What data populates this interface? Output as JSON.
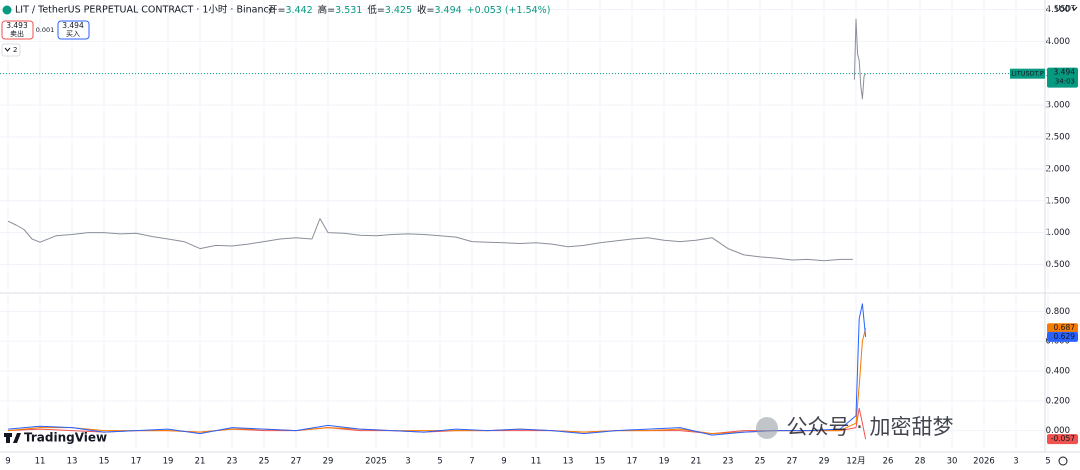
{
  "header": {
    "symbol": "LIT / TetherUS PERPETUAL CONTRACT · 1小时 · Binance",
    "open_label": "开=",
    "open": "3.442",
    "high_label": "高=",
    "high": "3.531",
    "low_label": "低=",
    "low": "3.425",
    "close_label": "收=",
    "close": "3.494",
    "change": "+0.053 (+1.54%)",
    "sell_price": "3.493",
    "sell_label": "卖出",
    "spread": "0.001",
    "buy_price": "3.494",
    "buy_label": "买入",
    "indicator_toggle": "2",
    "currency": "USDT"
  },
  "watermark": "公众号 · 加密甜梦",
  "logo": "TradingView",
  "chart_data": [
    {
      "type": "line",
      "color": "#8a8f99",
      "x": [
        0,
        0.5,
        1,
        1.5,
        2,
        3,
        4,
        5,
        6,
        7,
        8,
        9,
        10,
        11,
        12,
        13,
        14,
        15,
        16,
        17,
        18,
        19,
        19.5,
        20,
        21,
        22,
        23,
        24,
        25,
        26,
        27,
        28,
        29,
        30,
        31,
        32,
        33,
        34,
        35,
        36,
        37,
        38,
        39,
        40,
        41,
        42,
        43,
        44,
        45,
        46,
        47,
        48,
        49,
        50,
        51,
        52,
        52.8,
        52.85,
        52.9,
        53.0,
        53.1,
        53.2,
        53.3,
        53.4,
        53.5,
        53.6
      ],
      "values": [
        1.18,
        1.12,
        1.05,
        0.9,
        0.85,
        0.95,
        0.97,
        1.0,
        1.0,
        0.98,
        0.99,
        0.94,
        0.9,
        0.86,
        0.75,
        0.8,
        0.79,
        0.82,
        0.86,
        0.9,
        0.92,
        0.9,
        1.22,
        1.0,
        0.99,
        0.96,
        0.95,
        0.97,
        0.98,
        0.97,
        0.95,
        0.93,
        0.86,
        0.85,
        0.84,
        0.83,
        0.84,
        0.82,
        0.78,
        0.8,
        0.84,
        0.87,
        0.9,
        0.92,
        0.88,
        0.86,
        0.88,
        0.92,
        0.75,
        0.65,
        0.62,
        0.6,
        0.57,
        0.58,
        0.56,
        0.58,
        0.58,
        null,
        3.4,
        4.35,
        3.8,
        3.7,
        3.3,
        3.1,
        3.45,
        3.494
      ],
      "xlim": [
        -0.5,
        66.5
      ],
      "xticks": [
        {
          "value": 0,
          "label": "9"
        },
        {
          "value": 2,
          "label": "11"
        },
        {
          "value": 4,
          "label": "13"
        },
        {
          "value": 6,
          "label": "15"
        },
        {
          "value": 8,
          "label": "17"
        },
        {
          "value": 10,
          "label": "19"
        },
        {
          "value": 12,
          "label": "21"
        },
        {
          "value": 14,
          "label": "23"
        },
        {
          "value": 16,
          "label": "25"
        },
        {
          "value": 18,
          "label": "27"
        },
        {
          "value": 20,
          "label": "29"
        },
        {
          "value": 23,
          "label": "2025"
        },
        {
          "value": 25,
          "label": "3"
        },
        {
          "value": 27,
          "label": "5"
        },
        {
          "value": 29,
          "label": "7"
        },
        {
          "value": 31,
          "label": "9"
        },
        {
          "value": 33,
          "label": "11"
        },
        {
          "value": 35,
          "label": "13"
        },
        {
          "value": 37,
          "label": "15"
        },
        {
          "value": 39,
          "label": "17"
        },
        {
          "value": 41,
          "label": "19"
        },
        {
          "value": 43,
          "label": "21"
        },
        {
          "value": 45,
          "label": "23"
        },
        {
          "value": 47,
          "label": "25"
        },
        {
          "value": 49,
          "label": "27"
        },
        {
          "value": 51,
          "label": "29"
        },
        {
          "value": 53,
          "label": "12月"
        },
        {
          "value": 55,
          "label": "26"
        },
        {
          "value": 57,
          "label": "28"
        },
        {
          "value": 59,
          "label": "30"
        },
        {
          "value": 61,
          "label": "2026"
        },
        {
          "value": 63,
          "label": "3"
        },
        {
          "value": 65,
          "label": "5"
        }
      ],
      "ylim": [
        0.1,
        4.65
      ],
      "yticks": [
        {
          "value": 0.5,
          "label": "0.500"
        },
        {
          "value": 1,
          "label": "1.000"
        },
        {
          "value": 1.5,
          "label": "1.500"
        },
        {
          "value": 2,
          "label": "2.000"
        },
        {
          "value": 2.5,
          "label": "2.500"
        },
        {
          "value": 3,
          "label": "3.000"
        },
        {
          "value": 3.5,
          "label": "3.500"
        },
        {
          "value": 4,
          "label": "4.000"
        },
        {
          "value": 4.5,
          "label": "4.500"
        }
      ],
      "grid": true,
      "price_line": {
        "name": "LITUSDT.P",
        "value": 3.494,
        "label": "3.494",
        "countdown": "34:03",
        "color": "#089981"
      }
    },
    {
      "type": "line",
      "x": [
        0,
        2,
        4,
        6,
        8,
        10,
        12,
        14,
        16,
        18,
        20,
        22,
        24,
        26,
        28,
        30,
        32,
        34,
        36,
        38,
        40,
        42,
        44,
        46,
        48,
        50,
        52,
        53.0,
        53.2,
        53.4,
        53.6
      ],
      "xlim": [
        -0.5,
        66.5
      ],
      "ylim": [
        -0.13,
        0.91
      ],
      "yticks": [
        {
          "value": 0,
          "label": "0.000"
        },
        {
          "value": 0.2,
          "label": "0.200"
        },
        {
          "value": 0.4,
          "label": "0.400"
        },
        {
          "value": 0.6,
          "label": "0.600"
        },
        {
          "value": 0.8,
          "label": "0.800"
        }
      ],
      "grid": true,
      "series": [
        {
          "color": "#ef5350",
          "values": [
            0.0,
            0.01,
            0.0,
            -0.01,
            0.0,
            0.0,
            -0.01,
            0.01,
            0.0,
            0.0,
            0.02,
            0.0,
            0.0,
            -0.01,
            0.0,
            0.0,
            0.0,
            0.0,
            -0.01,
            0.0,
            0.0,
            0.0,
            -0.02,
            0.0,
            0.0,
            0.0,
            0.0,
            0.02,
            0.15,
            0.05,
            -0.057
          ],
          "value_labels": [
            null,
            null,
            null,
            null,
            null,
            null,
            null,
            null,
            null,
            null,
            null,
            null,
            null,
            null,
            null,
            null,
            null,
            null,
            null,
            null,
            null,
            null,
            null,
            null,
            null,
            null,
            null,
            null,
            null,
            null,
            "-0.057"
          ]
        },
        {
          "color": "#f57c00",
          "values": [
            0.0,
            0.02,
            0.02,
            0.0,
            0.0,
            0.0,
            -0.01,
            0.01,
            0.01,
            0.0,
            0.02,
            0.01,
            0.0,
            0.0,
            0.0,
            0.0,
            0.01,
            0.0,
            -0.01,
            0.0,
            0.0,
            0.01,
            -0.02,
            -0.01,
            0.0,
            0.0,
            0.0,
            0.05,
            0.3,
            0.6,
            0.687
          ],
          "value_labels": [
            null,
            null,
            null,
            null,
            null,
            null,
            null,
            null,
            null,
            null,
            null,
            null,
            null,
            null,
            null,
            null,
            null,
            null,
            null,
            null,
            null,
            null,
            null,
            null,
            null,
            null,
            null,
            null,
            null,
            null,
            "0.687"
          ]
        },
        {
          "color": "#2962ff",
          "values": [
            0.01,
            0.03,
            0.02,
            -0.01,
            0.0,
            0.01,
            -0.02,
            0.02,
            0.01,
            0.0,
            0.035,
            0.01,
            0.0,
            -0.01,
            0.01,
            0.0,
            0.01,
            0.0,
            -0.02,
            0.0,
            0.01,
            0.02,
            -0.03,
            -0.01,
            0.0,
            0.0,
            0.01,
            0.1,
            0.75,
            0.85,
            0.629
          ],
          "value_labels": [
            null,
            null,
            null,
            null,
            null,
            null,
            null,
            null,
            null,
            null,
            null,
            null,
            null,
            null,
            null,
            null,
            null,
            null,
            null,
            null,
            null,
            null,
            null,
            null,
            null,
            null,
            null,
            null,
            null,
            null,
            "0.629"
          ]
        }
      ]
    }
  ]
}
